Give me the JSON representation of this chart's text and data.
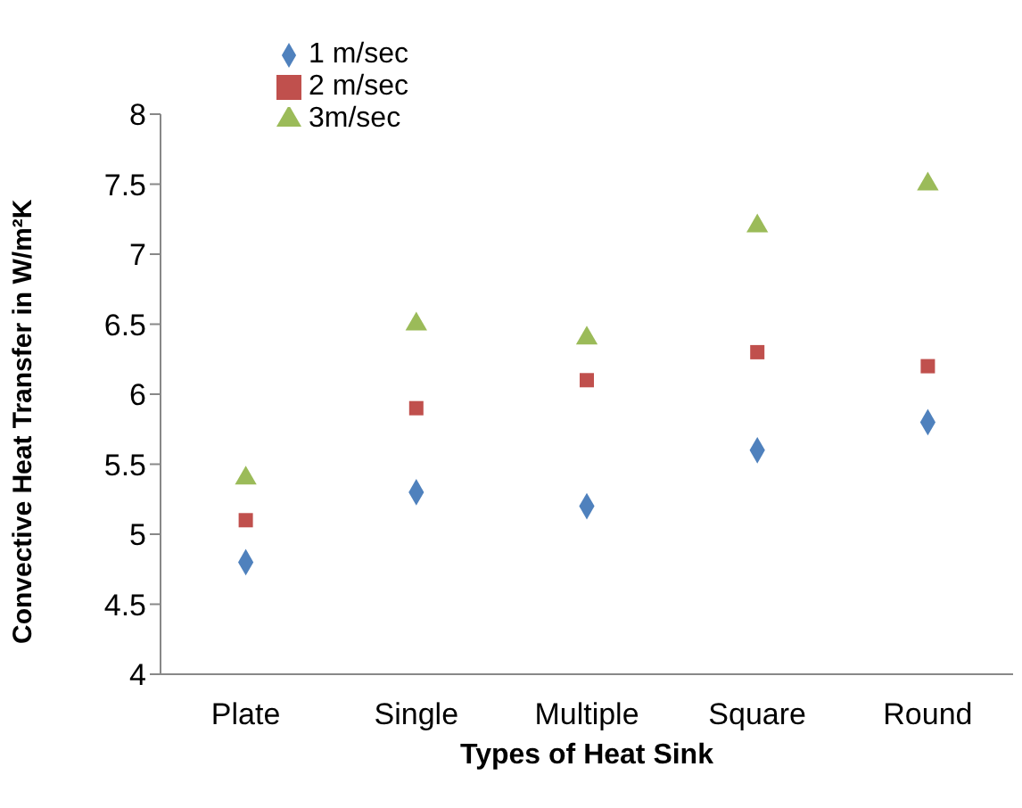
{
  "chart_data": {
    "type": "scatter",
    "xlabel": "Types of Heat Sink",
    "ylabel": "Convective Heat Transfer in W/m²K",
    "categories": [
      "Plate",
      "Single",
      "Multiple",
      "Square",
      "Round"
    ],
    "ylim": [
      4,
      8
    ],
    "yticks": [
      4,
      4.5,
      5,
      5.5,
      6,
      6.5,
      7,
      7.5,
      8
    ],
    "grid": false,
    "legend": "top left",
    "series": [
      {
        "name": "1 m/sec",
        "color": "#4f81bd",
        "marker": "diamond",
        "values": [
          4.8,
          5.3,
          5.2,
          5.6,
          5.8
        ]
      },
      {
        "name": "2 m/sec",
        "color": "#c0504d",
        "marker": "square",
        "values": [
          5.1,
          5.9,
          6.1,
          6.3,
          6.2
        ]
      },
      {
        "name": "3m/sec",
        "color": "#9bbb59",
        "marker": "triangle",
        "values": [
          5.4,
          6.5,
          6.4,
          7.2,
          7.5
        ]
      }
    ]
  }
}
